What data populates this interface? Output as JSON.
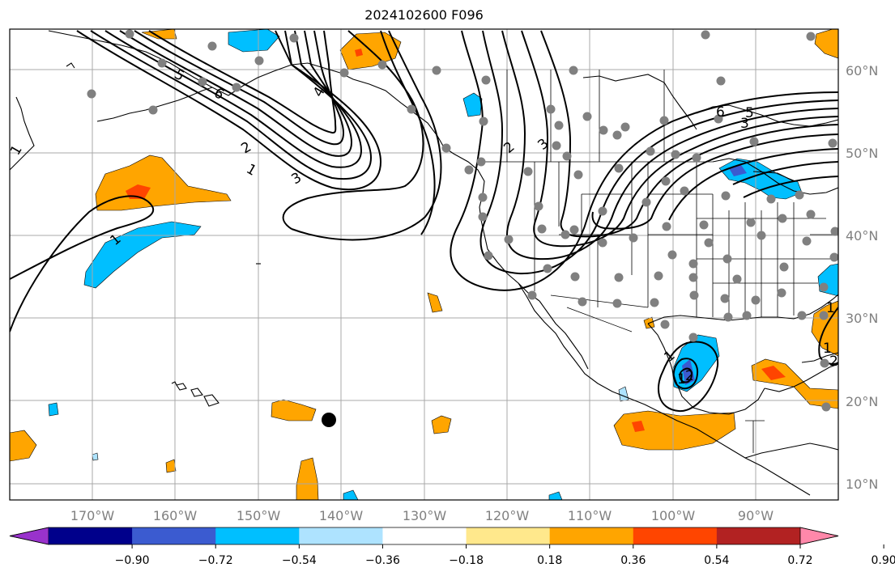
{
  "title": "2024102600 F096",
  "map": {
    "lat_labels": [
      "60°N",
      "50°N",
      "40°N",
      "30°N",
      "20°N",
      "10°N"
    ],
    "lon_labels": [
      "170°W",
      "160°W",
      "150°W",
      "140°W",
      "130°W",
      "120°W",
      "110°W",
      "100°W",
      "90°W"
    ],
    "contour_labels": [
      "1",
      "2",
      "3",
      "4",
      "5",
      "6",
      "1",
      "2",
      "3",
      "1",
      "1",
      "5",
      "6",
      "3",
      "1",
      "2",
      "1",
      "1",
      "2"
    ],
    "colors": {
      "gridline": "#a8a8a8",
      "coast": "#000000",
      "contour": "#000000",
      "station_dot": "#808080",
      "marker": "#000000"
    }
  },
  "colorbar": {
    "tick_labels": [
      "−0.90",
      "−0.72",
      "−0.54",
      "−0.36",
      "−0.18",
      "0.18",
      "0.36",
      "0.54",
      "0.72",
      "0.90"
    ],
    "colors": [
      "#9932cc",
      "#00008b",
      "#3b5bd0",
      "#00bfff",
      "#aee3ff",
      "#ffffff",
      "#ffe88c",
      "#ffa500",
      "#ff4500",
      "#b22222",
      "#ff88aa"
    ]
  }
}
